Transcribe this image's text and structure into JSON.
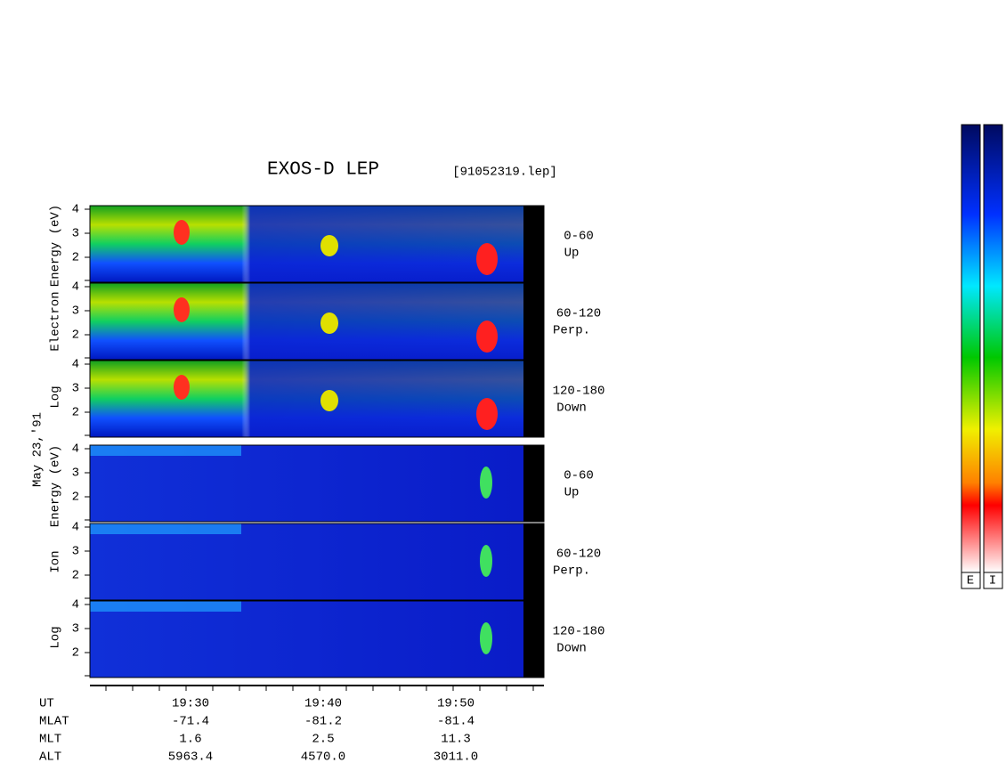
{
  "title": "EXOS-D LEP",
  "file": "[91052319.lep]",
  "date": "May 23,'91",
  "groups": [
    {
      "axis_label": [
        "Log",
        "Electron",
        "Energy (eV)"
      ],
      "panels": [
        {
          "yticks": [
            "4",
            "3",
            "2"
          ],
          "range": "0-60",
          "direction": "Up"
        },
        {
          "yticks": [
            "4",
            "3",
            "2"
          ],
          "range": "60-120",
          "direction": "Perp."
        },
        {
          "yticks": [
            "4",
            "3",
            "2"
          ],
          "range": "120-180",
          "direction": "Down"
        }
      ]
    },
    {
      "axis_label": [
        "Log",
        "Ion",
        "Energy (eV)"
      ],
      "panels": [
        {
          "yticks": [
            "4",
            "3",
            "2"
          ],
          "range": "0-60",
          "direction": "Up"
        },
        {
          "yticks": [
            "4",
            "3",
            "2"
          ],
          "range": "60-120",
          "direction": "Perp."
        },
        {
          "yticks": [
            "4",
            "3",
            "2"
          ],
          "range": "120-180",
          "direction": "Down"
        }
      ]
    }
  ],
  "footer": {
    "rows": [
      [
        "UT",
        "19:30",
        "19:40",
        "19:50"
      ],
      [
        "MLAT",
        "-71.4",
        "-81.2",
        "-81.4"
      ],
      [
        "MLT",
        "1.6",
        "2.5",
        "11.3"
      ],
      [
        "ALT",
        "5963.4",
        "4570.0",
        "3011.0"
      ]
    ]
  },
  "colorbars": [
    "E",
    "I"
  ]
}
